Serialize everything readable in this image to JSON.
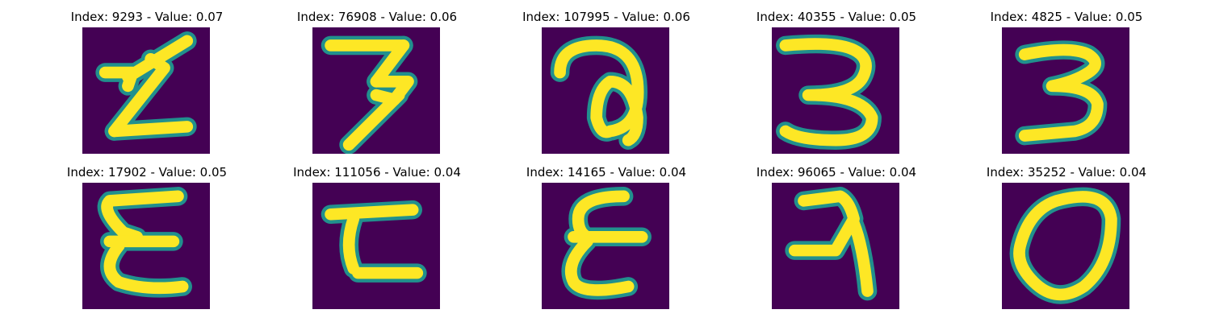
{
  "colors": {
    "background": "#440154",
    "stroke_mid": "#21908d",
    "stroke_core": "#fde725"
  },
  "panels": [
    {
      "title": "Index: 9293 - Value: 0.07",
      "glyph": "zigzag-z-icon"
    },
    {
      "title": "Index: 76908 - Value: 0.06",
      "glyph": "digit-seven-icon"
    },
    {
      "title": "Index: 107995 - Value: 0.06",
      "glyph": "loop-a-icon"
    },
    {
      "title": "Index: 40355 - Value: 0.05",
      "glyph": "digit-three-icon"
    },
    {
      "title": "Index: 4825 - Value: 0.05",
      "glyph": "digit-three-bold-icon"
    },
    {
      "title": "Index: 17902 - Value: 0.05",
      "glyph": "epsilon-icon"
    },
    {
      "title": "Index: 111056 - Value: 0.04",
      "glyph": "sigma-like-icon"
    },
    {
      "title": "Index: 14165 - Value: 0.04",
      "glyph": "epsilon-thin-icon"
    },
    {
      "title": "Index: 96065 - Value: 0.04",
      "glyph": "reversed-r-icon"
    },
    {
      "title": "Index: 35252 - Value: 0.04",
      "glyph": "digit-zero-icon"
    }
  ]
}
